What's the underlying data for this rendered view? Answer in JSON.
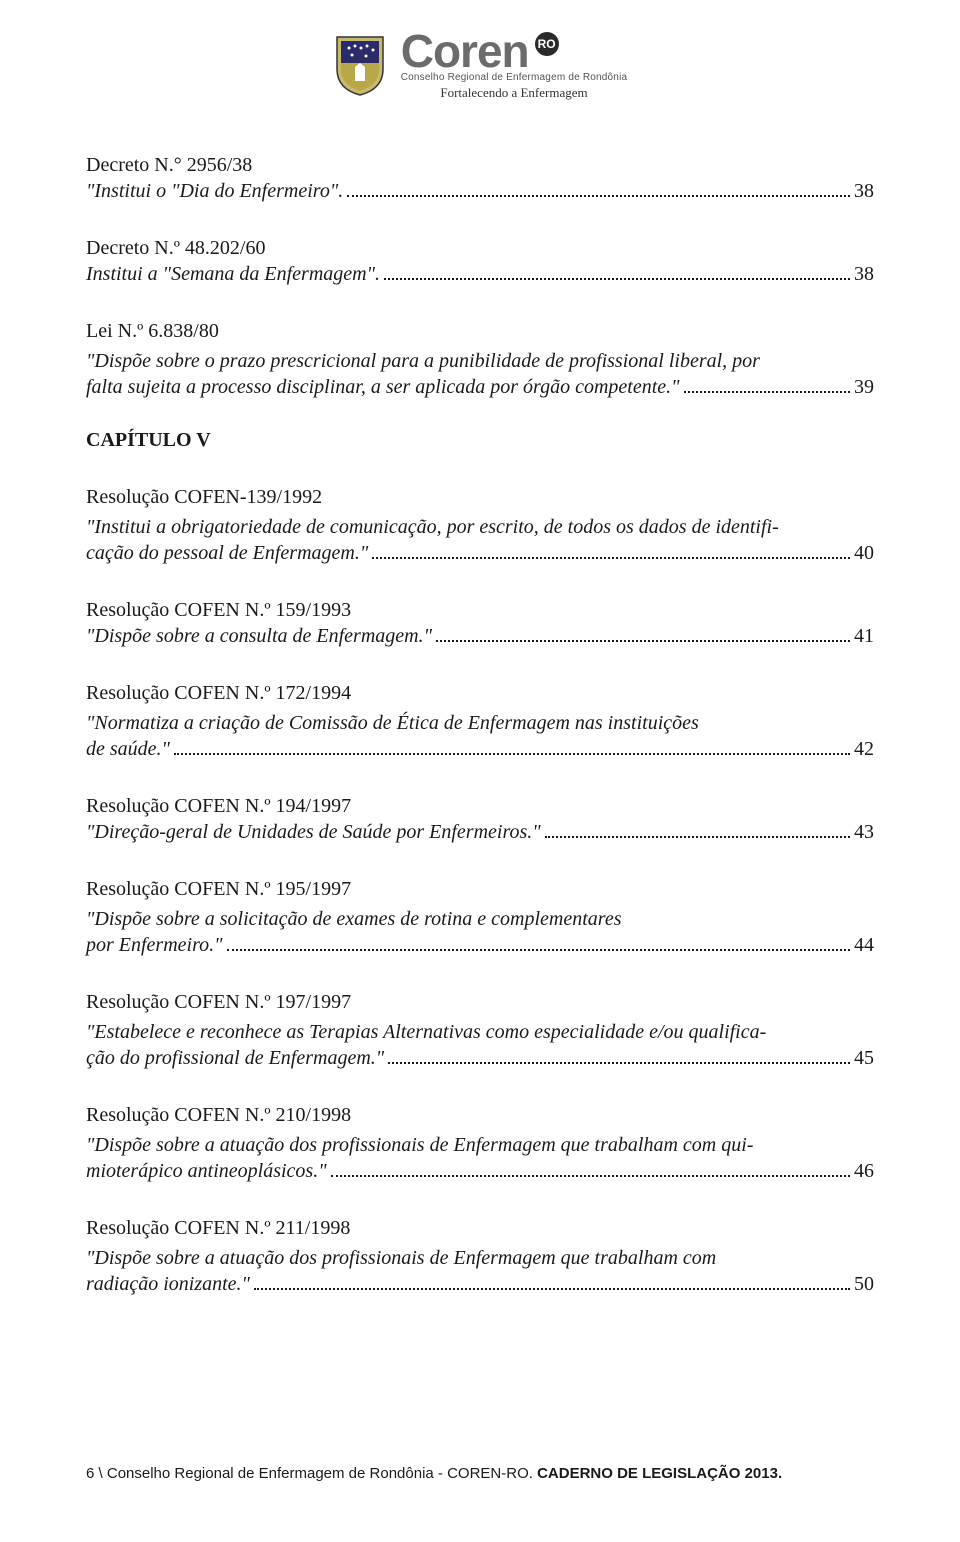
{
  "logo": {
    "brand": "Coren",
    "badge": "RO",
    "subtitle": "Conselho Regional de Enfermagem de Rondônia",
    "tagline": "Fortalecendo a Enfermagem",
    "shield_colors": {
      "stroke": "#333333",
      "top": "#2b2b6b",
      "bottom": "#b8a84a",
      "border": "#c9b96a"
    }
  },
  "entries": [
    {
      "title": "Decreto N.° 2956/38",
      "desc_lines": [],
      "last_line": "\"Institui o \"Dia do Enfermeiro\".",
      "page": "38"
    },
    {
      "title": "Decreto N.º 48.202/60",
      "desc_lines": [],
      "last_line": "Institui a \"Semana da Enfermagem\".",
      "page": "38"
    },
    {
      "title": "Lei N.º 6.838/80",
      "desc_lines": [
        "\"Dispõe sobre o prazo prescricional para a punibilidade de profissional liberal, por"
      ],
      "last_line": "falta sujeita a processo disciplinar, a ser aplicada por órgão competente.\"",
      "page": "39"
    }
  ],
  "chapter": "CAPÍTULO V",
  "entries2": [
    {
      "title": "Resolução COFEN-139/1992",
      "desc_lines": [
        "\"Institui a obrigatoriedade de comunicação, por escrito, de todos os dados de identifi-"
      ],
      "last_line": "cação do pessoal de Enfermagem.\"",
      "page": "40"
    },
    {
      "title": "Resolução COFEN N.º 159/1993",
      "desc_lines": [],
      "last_line": "\"Dispõe sobre a consulta de Enfermagem.\"",
      "page": "41"
    },
    {
      "title": "Resolução COFEN N.º 172/1994",
      "desc_lines": [
        "\"Normatiza a criação de Comissão de Ética de Enfermagem nas instituições"
      ],
      "last_line": "de saúde.\"",
      "page": "42"
    },
    {
      "title": "Resolução COFEN N.º 194/1997",
      "desc_lines": [],
      "last_line": "\"Direção-geral de Unidades de Saúde por Enfermeiros.\"",
      "page": "43"
    },
    {
      "title": "Resolução COFEN N.º 195/1997",
      "desc_lines": [
        "\"Dispõe sobre a solicitação de exames de rotina e complementares"
      ],
      "last_line": "por Enfermeiro.\"",
      "page": "44"
    },
    {
      "title": "Resolução COFEN N.º 197/1997",
      "desc_lines": [
        "\"Estabelece e reconhece as Terapias Alternativas como especialidade e/ou qualifica-"
      ],
      "last_line": "ção do profissional de Enfermagem.\"",
      "page": "45"
    },
    {
      "title": "Resolução COFEN N.º 210/1998",
      "desc_lines": [
        "\"Dispõe sobre a atuação dos profissionais de Enfermagem que trabalham com qui-"
      ],
      "last_line": "mioterápico antineoplásicos.\"",
      "page": "46"
    },
    {
      "title": "Resolução COFEN N.º 211/1998",
      "desc_lines": [
        "\"Dispõe sobre a atuação dos profissionais de Enfermagem que trabalham com"
      ],
      "last_line": "radiação ionizante.\"",
      "page": "50"
    }
  ],
  "footer": {
    "page_num": "6",
    "sep": " \\ ",
    "org": "Conselho Regional de Enfermagem de Rondônia - COREN-RO. ",
    "doc": "CADERNO DE LEGISLAÇÃO 2013."
  }
}
